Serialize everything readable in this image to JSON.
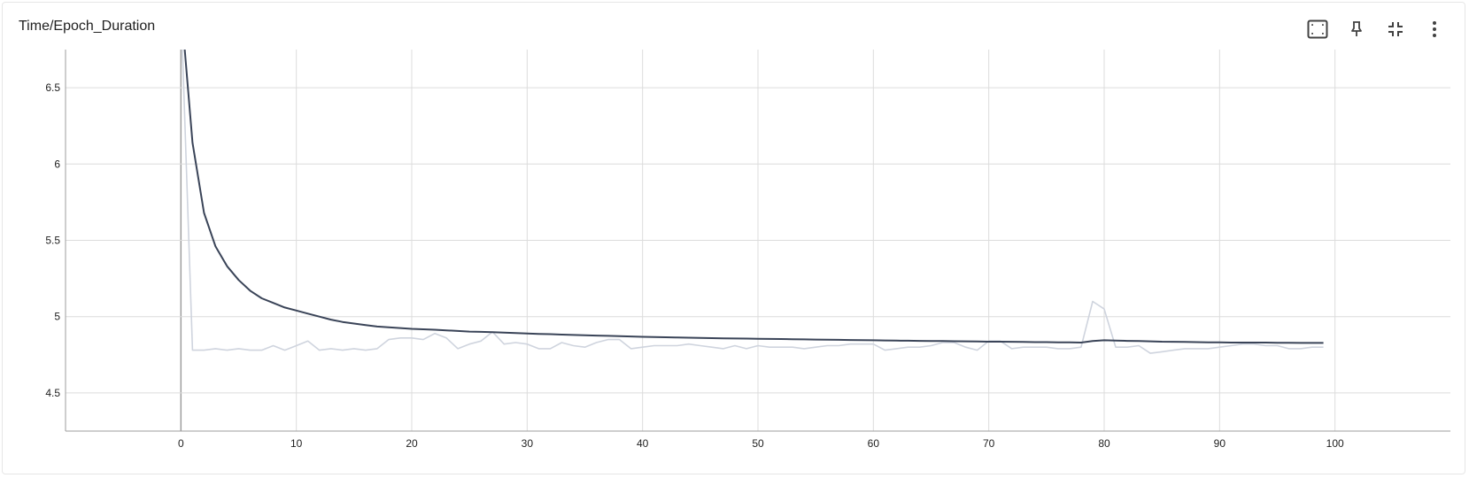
{
  "card": {
    "title": "Time/Epoch_Duration"
  },
  "toolbar": [
    {
      "icon": "fit-domain-icon"
    },
    {
      "icon": "pin-icon"
    },
    {
      "icon": "collapse-icon"
    },
    {
      "icon": "more-vert-icon"
    }
  ],
  "colors": {
    "smoothed": "#3a4458",
    "raw": "#cfd4de",
    "grid": "#dcdcdc",
    "axis": "#9e9e9e"
  },
  "chart_data": {
    "type": "line",
    "title": "Time/Epoch_Duration",
    "xlabel": "",
    "ylabel": "",
    "xlim": [
      -10,
      110
    ],
    "ylim": [
      4.25,
      6.75
    ],
    "x_ticks": [
      0,
      10,
      20,
      30,
      40,
      50,
      60,
      70,
      80,
      90,
      100
    ],
    "y_ticks": [
      4.5,
      5,
      5.5,
      6,
      6.5
    ],
    "x_tick_labels": [
      "0",
      "10",
      "20",
      "30",
      "40",
      "50",
      "60",
      "70",
      "80",
      "90",
      "100"
    ],
    "y_tick_labels": [
      "4.5",
      "5",
      "5.5",
      "6",
      "6.5"
    ],
    "grid": true,
    "series": [
      {
        "role": "raw",
        "x": [
          0,
          1,
          2,
          3,
          4,
          5,
          6,
          7,
          8,
          9,
          10,
          11,
          12,
          13,
          14,
          15,
          16,
          17,
          18,
          19,
          20,
          21,
          22,
          23,
          24,
          25,
          26,
          27,
          28,
          29,
          30,
          31,
          32,
          33,
          34,
          35,
          36,
          37,
          38,
          39,
          40,
          41,
          42,
          43,
          44,
          45,
          46,
          47,
          48,
          49,
          50,
          51,
          52,
          53,
          54,
          55,
          56,
          57,
          58,
          59,
          60,
          61,
          62,
          63,
          64,
          65,
          66,
          67,
          68,
          69,
          70,
          71,
          72,
          73,
          74,
          75,
          76,
          77,
          78,
          79,
          80,
          81,
          82,
          83,
          84,
          85,
          86,
          87,
          88,
          89,
          90,
          91,
          92,
          93,
          94,
          95,
          96,
          97,
          98,
          99
        ],
        "values": [
          7.05,
          4.78,
          4.78,
          4.79,
          4.78,
          4.79,
          4.78,
          4.78,
          4.81,
          4.78,
          4.81,
          4.84,
          4.78,
          4.79,
          4.78,
          4.79,
          4.78,
          4.79,
          4.85,
          4.86,
          4.86,
          4.85,
          4.89,
          4.86,
          4.79,
          4.82,
          4.84,
          4.9,
          4.82,
          4.83,
          4.82,
          4.79,
          4.79,
          4.83,
          4.81,
          4.8,
          4.83,
          4.85,
          4.85,
          4.79,
          4.8,
          4.81,
          4.81,
          4.81,
          4.82,
          4.81,
          4.8,
          4.79,
          4.81,
          4.79,
          4.81,
          4.8,
          4.8,
          4.8,
          4.79,
          4.8,
          4.81,
          4.81,
          4.82,
          4.82,
          4.82,
          4.78,
          4.79,
          4.8,
          4.8,
          4.81,
          4.83,
          4.83,
          4.8,
          4.78,
          4.84,
          4.84,
          4.79,
          4.8,
          4.8,
          4.8,
          4.79,
          4.79,
          4.8,
          5.1,
          5.05,
          4.8,
          4.8,
          4.81,
          4.76,
          4.77,
          4.78,
          4.79,
          4.79,
          4.79,
          4.8,
          4.81,
          4.82,
          4.82,
          4.81,
          4.81,
          4.79,
          4.79,
          4.8,
          4.8
        ]
      },
      {
        "role": "smoothed",
        "x": [
          0,
          1,
          2,
          3,
          4,
          5,
          6,
          7,
          8,
          9,
          10,
          11,
          12,
          13,
          14,
          15,
          16,
          17,
          18,
          19,
          20,
          21,
          22,
          23,
          24,
          25,
          26,
          27,
          28,
          29,
          30,
          31,
          32,
          33,
          34,
          35,
          36,
          37,
          38,
          39,
          40,
          41,
          42,
          43,
          44,
          45,
          46,
          47,
          48,
          49,
          50,
          51,
          52,
          53,
          54,
          55,
          56,
          57,
          58,
          59,
          60,
          61,
          62,
          63,
          64,
          65,
          66,
          67,
          68,
          69,
          70,
          71,
          72,
          73,
          74,
          75,
          76,
          77,
          78,
          79,
          80,
          81,
          82,
          83,
          84,
          85,
          86,
          87,
          88,
          89,
          90,
          91,
          92,
          93,
          94,
          95,
          96,
          97,
          98,
          99
        ],
        "values": [
          7.05,
          6.14,
          5.68,
          5.46,
          5.33,
          5.24,
          5.17,
          5.12,
          5.09,
          5.06,
          5.04,
          5.02,
          5.0,
          4.98,
          4.965,
          4.955,
          4.945,
          4.935,
          4.93,
          4.925,
          4.92,
          4.917,
          4.914,
          4.91,
          4.906,
          4.902,
          4.9,
          4.898,
          4.895,
          4.892,
          4.89,
          4.887,
          4.885,
          4.882,
          4.88,
          4.878,
          4.876,
          4.874,
          4.872,
          4.87,
          4.868,
          4.866,
          4.865,
          4.863,
          4.862,
          4.86,
          4.859,
          4.858,
          4.857,
          4.856,
          4.855,
          4.854,
          4.853,
          4.852,
          4.851,
          4.85,
          4.849,
          4.848,
          4.847,
          4.846,
          4.845,
          4.844,
          4.843,
          4.842,
          4.841,
          4.84,
          4.84,
          4.839,
          4.838,
          4.837,
          4.836,
          4.836,
          4.835,
          4.834,
          4.833,
          4.833,
          4.832,
          4.831,
          4.83,
          4.84,
          4.845,
          4.843,
          4.841,
          4.84,
          4.838,
          4.836,
          4.835,
          4.834,
          4.833,
          4.832,
          4.831,
          4.83,
          4.83,
          4.83,
          4.83,
          4.829,
          4.829,
          4.828,
          4.828,
          4.828
        ]
      }
    ]
  }
}
